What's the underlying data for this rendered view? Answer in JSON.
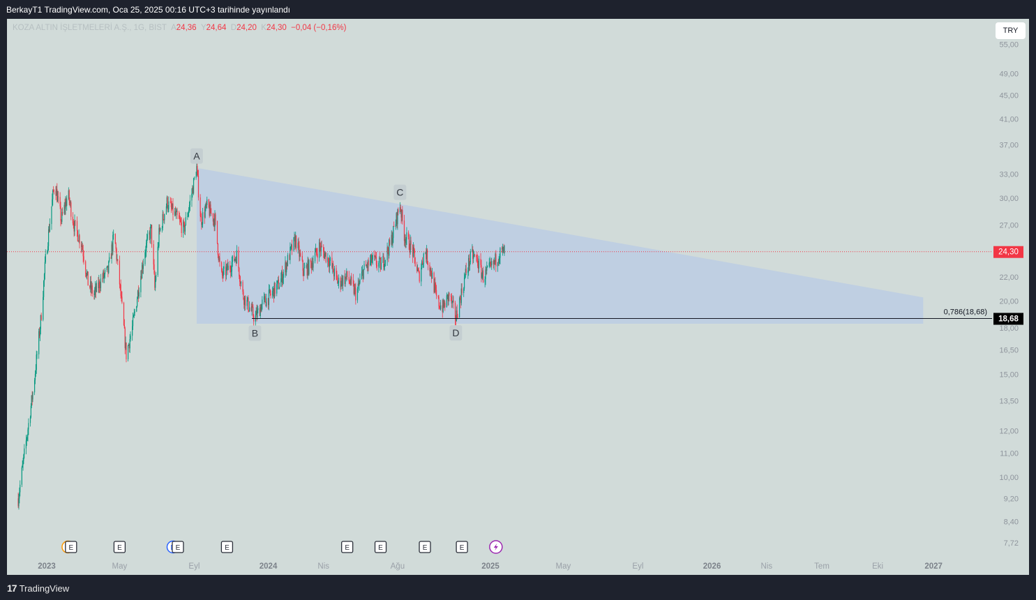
{
  "header": {
    "published_text": "BerkayT1 TradingView.com, Oca 25, 2025 00:16 UTC+3 tarihinde yayınlandı"
  },
  "legend": {
    "symbol": "KOZA ALTIN İŞLETMELERİ A.Ş., 1G, BIST",
    "open_label": "A",
    "open": "24,36",
    "high_label": "Y",
    "high": "24,64",
    "low_label": "D",
    "low": "24,20",
    "close_label": "K",
    "close": "24,30",
    "change": "−0,04 (−0,16%)"
  },
  "currency_button": "TRY",
  "footer": {
    "brand": "TradingView"
  },
  "colors": {
    "background": "#d1dbd9",
    "up": "#089981",
    "down": "#f23645",
    "pattern_fill": "#bccde3",
    "price_line": "#f23645"
  },
  "chart_data": {
    "type": "candlestick",
    "y_scale": "log",
    "ylim": [
      7.3,
      57
    ],
    "y_ticks": [
      "55,00",
      "49,00",
      "45,00",
      "41,00",
      "37,00",
      "33,00",
      "30,00",
      "27,00",
      "22,00",
      "20,00",
      "18,00",
      "16,50",
      "15,00",
      "13,50",
      "12,00",
      "11,00",
      "10,00",
      "9,20",
      "8,40",
      "7,72"
    ],
    "x_ticks": [
      {
        "label": "2023",
        "date": "2023-01-01",
        "bold": true
      },
      {
        "label": "May",
        "date": "2023-05-01",
        "bold": false
      },
      {
        "label": "Eyl",
        "date": "2023-09-01",
        "bold": false
      },
      {
        "label": "2024",
        "date": "2024-01-01",
        "bold": true
      },
      {
        "label": "Nis",
        "date": "2024-04-01",
        "bold": false
      },
      {
        "label": "Ağu",
        "date": "2024-08-01",
        "bold": false
      },
      {
        "label": "2025",
        "date": "2025-01-01",
        "bold": true
      },
      {
        "label": "May",
        "date": "2025-05-01",
        "bold": false
      },
      {
        "label": "Eyl",
        "date": "2025-09-01",
        "bold": false
      },
      {
        "label": "2026",
        "date": "2026-01-01",
        "bold": true
      },
      {
        "label": "Nis",
        "date": "2026-04-01",
        "bold": false
      },
      {
        "label": "Tem",
        "date": "2026-07-01",
        "bold": false
      },
      {
        "label": "Eki",
        "date": "2026-10-01",
        "bold": false
      },
      {
        "label": "2027",
        "date": "2027-01-01",
        "bold": true
      }
    ],
    "price_path": [
      [
        "2022-11-15",
        9.2
      ],
      [
        "2022-11-28",
        11.5
      ],
      [
        "2022-12-10",
        14.2
      ],
      [
        "2022-12-22",
        18.5
      ],
      [
        "2022-12-30",
        23.5
      ],
      [
        "2023-01-08",
        28.5
      ],
      [
        "2023-01-14",
        32.0
      ],
      [
        "2023-01-25",
        27.5
      ],
      [
        "2023-02-05",
        30.5
      ],
      [
        "2023-02-15",
        27.0
      ],
      [
        "2023-02-28",
        25.0
      ],
      [
        "2023-03-10",
        21.5
      ],
      [
        "2023-03-20",
        20.5
      ],
      [
        "2023-04-01",
        21.8
      ],
      [
        "2023-04-12",
        22.5
      ],
      [
        "2023-04-22",
        26.0
      ],
      [
        "2023-05-01",
        21.5
      ],
      [
        "2023-05-12",
        16.2
      ],
      [
        "2023-05-22",
        18.0
      ],
      [
        "2023-06-01",
        21.0
      ],
      [
        "2023-06-12",
        24.5
      ],
      [
        "2023-06-22",
        26.5
      ],
      [
        "2023-06-28",
        21.0
      ],
      [
        "2023-07-05",
        26.0
      ],
      [
        "2023-07-18",
        29.5
      ],
      [
        "2023-08-01",
        28.0
      ],
      [
        "2023-08-15",
        26.5
      ],
      [
        "2023-08-25",
        29.5
      ],
      [
        "2023-09-05",
        33.8
      ],
      [
        "2023-09-12",
        27.5
      ],
      [
        "2023-09-22",
        29.0
      ],
      [
        "2023-10-05",
        27.5
      ],
      [
        "2023-10-15",
        22.0
      ],
      [
        "2023-10-28",
        22.8
      ],
      [
        "2023-11-10",
        24.0
      ],
      [
        "2023-11-20",
        20.5
      ],
      [
        "2023-12-01",
        19.5
      ],
      [
        "2023-12-10",
        18.68
      ],
      [
        "2023-12-22",
        19.8
      ],
      [
        "2024-01-05",
        20.5
      ],
      [
        "2024-01-20",
        21.5
      ],
      [
        "2024-02-05",
        24.0
      ],
      [
        "2024-02-15",
        25.5
      ],
      [
        "2024-02-28",
        22.5
      ],
      [
        "2024-03-10",
        23.0
      ],
      [
        "2024-03-25",
        24.8
      ],
      [
        "2024-04-10",
        23.5
      ],
      [
        "2024-04-25",
        21.5
      ],
      [
        "2024-05-10",
        22.0
      ],
      [
        "2024-05-25",
        20.5
      ],
      [
        "2024-06-05",
        22.5
      ],
      [
        "2024-06-20",
        23.5
      ],
      [
        "2024-07-05",
        23.0
      ],
      [
        "2024-07-20",
        25.0
      ],
      [
        "2024-08-05",
        29.3
      ],
      [
        "2024-08-12",
        26.0
      ],
      [
        "2024-08-25",
        24.5
      ],
      [
        "2024-09-05",
        22.0
      ],
      [
        "2024-09-15",
        24.5
      ],
      [
        "2024-09-25",
        22.5
      ],
      [
        "2024-10-05",
        20.0
      ],
      [
        "2024-10-15",
        19.5
      ],
      [
        "2024-10-25",
        20.5
      ],
      [
        "2024-11-05",
        18.7
      ],
      [
        "2024-11-12",
        20.2
      ],
      [
        "2024-11-22",
        22.5
      ],
      [
        "2024-12-01",
        24.0
      ],
      [
        "2024-12-10",
        23.5
      ],
      [
        "2024-12-20",
        22.0
      ],
      [
        "2025-01-05",
        23.0
      ],
      [
        "2025-01-15",
        24.1
      ],
      [
        "2025-01-24",
        24.3
      ]
    ],
    "triangle": {
      "top_start": {
        "date": "2023-09-05",
        "price": 33.8
      },
      "top_end": {
        "date": "2026-12-15",
        "price": 20.3
      },
      "bottom_start": {
        "date": "2023-09-05",
        "price": 18.3
      },
      "bottom_end": {
        "date": "2026-12-15",
        "price": 18.3
      }
    },
    "wave_labels": [
      {
        "label": "A",
        "date": "2023-09-05",
        "price": 33.8,
        "pos": "above"
      },
      {
        "label": "B",
        "date": "2023-12-10",
        "price": 18.68,
        "pos": "below"
      },
      {
        "label": "C",
        "date": "2024-08-05",
        "price": 29.3,
        "pos": "above"
      },
      {
        "label": "D",
        "date": "2024-11-05",
        "price": 18.7,
        "pos": "below"
      }
    ],
    "fib_line": {
      "label": "0,786(18,68)",
      "price": 18.68,
      "start": "2023-12-05"
    },
    "last_price": {
      "price": 24.3,
      "label": "24,30"
    },
    "fib_price_label": "18,68",
    "events": [
      {
        "date": "2023-02-05",
        "type": "S"
      },
      {
        "date": "2023-02-10",
        "type": "E"
      },
      {
        "date": "2023-05-01",
        "type": "E"
      },
      {
        "date": "2023-07-28",
        "type": "D"
      },
      {
        "date": "2023-08-05",
        "type": "E"
      },
      {
        "date": "2023-10-25",
        "type": "E"
      },
      {
        "date": "2024-05-10",
        "type": "E"
      },
      {
        "date": "2024-07-04",
        "type": "E"
      },
      {
        "date": "2024-09-15",
        "type": "E"
      },
      {
        "date": "2024-11-15",
        "type": "E"
      },
      {
        "date": "2025-01-10",
        "type": "split"
      }
    ]
  }
}
